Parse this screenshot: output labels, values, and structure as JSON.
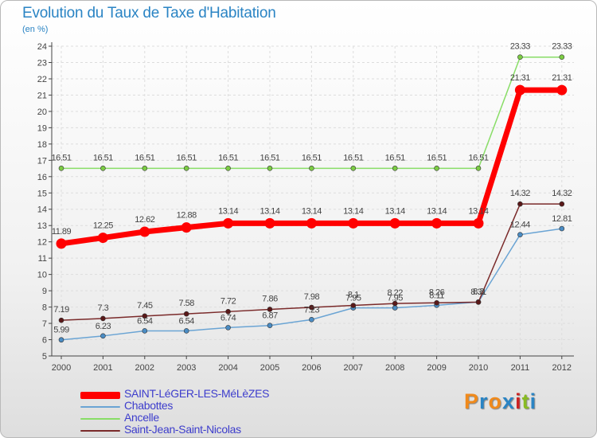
{
  "chart_data": {
    "type": "line",
    "title": "Evolution du Taux de Taxe d'Habitation",
    "subtitle": "(en %)",
    "x": [
      "2000",
      "2001",
      "2002",
      "2003",
      "2004",
      "2005",
      "2006",
      "2007",
      "2008",
      "2009",
      "2010",
      "2011",
      "2012"
    ],
    "ylim": [
      5,
      24
    ],
    "yticks": [
      5,
      6,
      7,
      8,
      9,
      10,
      11,
      12,
      13,
      14,
      15,
      16,
      17,
      18,
      19,
      20,
      21,
      22,
      23,
      24
    ],
    "grid": true,
    "legend_position": "bottom-left",
    "series": [
      {
        "name": "SAINT-LéGER-LES-MéLèZES",
        "color": "#ff0000",
        "values": [
          11.89,
          12.25,
          12.62,
          12.88,
          13.14,
          13.14,
          13.14,
          13.14,
          13.14,
          13.14,
          13.14,
          21.31,
          21.31
        ],
        "labels": [
          "11.89",
          "12.25",
          "12.62",
          "12.88",
          "13.14",
          "13.14",
          "13.14",
          "13.14",
          "13.14",
          "13.14",
          "13.14",
          "21.31",
          "21.31"
        ]
      },
      {
        "name": "Chabottes",
        "color": "#6aa4d4",
        "values": [
          5.99,
          6.23,
          6.54,
          6.54,
          6.74,
          6.87,
          7.23,
          7.95,
          7.95,
          8.11,
          8.31,
          12.44,
          12.81
        ],
        "labels": [
          "5.99",
          "6.23",
          "6.54",
          "6.54",
          "6.74",
          "6.87",
          "7.23",
          "7.95",
          "7.95",
          "8.11",
          "8.31",
          "12.44",
          "12.81"
        ]
      },
      {
        "name": "Ancelle",
        "color": "#88dd66",
        "values": [
          16.51,
          16.51,
          16.51,
          16.51,
          16.51,
          16.51,
          16.51,
          16.51,
          16.51,
          16.51,
          16.51,
          23.33,
          23.33
        ],
        "labels": [
          "16.51",
          "16.51",
          "16.51",
          "16.51",
          "16.51",
          "16.51",
          "16.51",
          "16.51",
          "16.51",
          "16.51",
          "16.51",
          "23.33",
          "23.33"
        ]
      },
      {
        "name": "Saint-Jean-Saint-Nicolas",
        "color": "#7a2a2a",
        "values": [
          7.19,
          7.3,
          7.45,
          7.58,
          7.72,
          7.86,
          7.98,
          8.1,
          8.22,
          8.26,
          8.3,
          14.32,
          14.32
        ],
        "labels": [
          "7.19",
          "7.3",
          "7.45",
          "7.58",
          "7.72",
          "7.86",
          "7.98",
          "8.1",
          "8.22",
          "8.26",
          "8.3",
          "14.32",
          "14.32"
        ]
      }
    ]
  },
  "brand": {
    "text": "Proxiti",
    "letters": [
      "P",
      "r",
      "o",
      "x",
      "i",
      "t",
      "i"
    ],
    "colors": [
      "#f08a1c",
      "#2a84c4",
      "#f08a1c",
      "#2a84c4",
      "#cc2222",
      "#88bb22",
      "#2a84c4"
    ]
  }
}
